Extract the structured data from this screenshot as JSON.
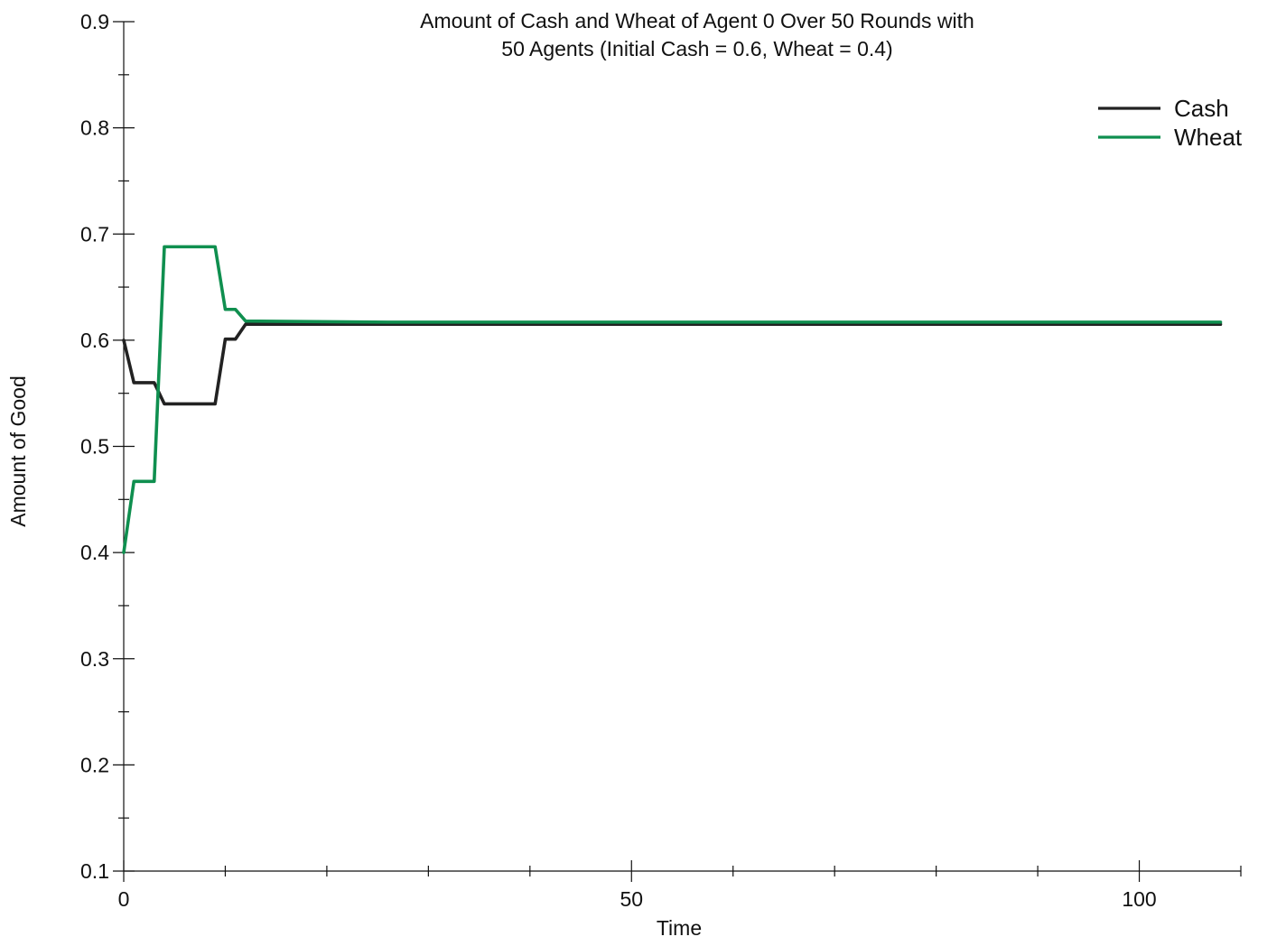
{
  "chart_data": {
    "type": "line",
    "title_lines": [
      "Amount of Cash and Wheat of Agent 0 Over 50 Rounds with",
      "50 Agents (Initial Cash = 0.6, Wheat = 0.4)"
    ],
    "xlabel": "Time",
    "ylabel": "Amount of Good",
    "xlim": [
      0,
      110
    ],
    "ylim": [
      0.1,
      0.9
    ],
    "x_ticks": [
      0,
      50,
      100
    ],
    "x_minor_step": 10,
    "y_ticks": [
      0.1,
      0.2,
      0.3,
      0.4,
      0.5,
      0.6,
      0.7,
      0.8,
      0.9
    ],
    "y_minor_step": 0.05,
    "grid": false,
    "legend": {
      "position": "top-right"
    },
    "series": [
      {
        "name": "Cash",
        "color": "#222222",
        "points": [
          [
            0,
            0.6
          ],
          [
            1,
            0.56
          ],
          [
            2,
            0.56
          ],
          [
            3,
            0.56
          ],
          [
            4,
            0.54
          ],
          [
            5,
            0.54
          ],
          [
            6,
            0.54
          ],
          [
            7,
            0.54
          ],
          [
            8,
            0.54
          ],
          [
            9,
            0.54
          ],
          [
            10,
            0.601
          ],
          [
            11,
            0.601
          ],
          [
            12,
            0.615
          ],
          [
            26,
            0.615
          ],
          [
            108,
            0.615
          ]
        ]
      },
      {
        "name": "Wheat",
        "color": "#0f8f4f",
        "points": [
          [
            0,
            0.4
          ],
          [
            1,
            0.467
          ],
          [
            2,
            0.467
          ],
          [
            3,
            0.467
          ],
          [
            4,
            0.688
          ],
          [
            5,
            0.688
          ],
          [
            6,
            0.688
          ],
          [
            7,
            0.688
          ],
          [
            8,
            0.688
          ],
          [
            9,
            0.688
          ],
          [
            10,
            0.629
          ],
          [
            11,
            0.629
          ],
          [
            12,
            0.618
          ],
          [
            26,
            0.617
          ],
          [
            108,
            0.617
          ]
        ]
      }
    ]
  }
}
